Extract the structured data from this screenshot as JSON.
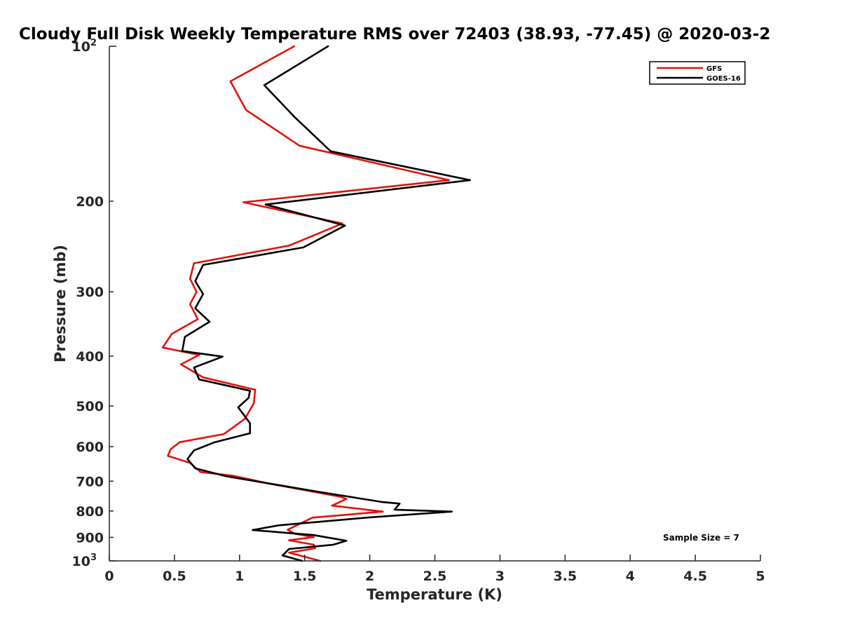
{
  "chart_data": {
    "type": "line",
    "title": "Cloudy Full Disk Weekly Temperature RMS over 72403 (38.93, -77.45) @ 2020-03-2",
    "xlabel": "Temperature (K)",
    "ylabel": "Pressure (mb)",
    "xlim": [
      0,
      5
    ],
    "ylim": [
      100,
      1000
    ],
    "y_scale": "log",
    "y_reversed": true,
    "x_ticks": [
      0,
      0.5,
      1,
      1.5,
      2,
      2.5,
      3,
      3.5,
      4,
      4.5,
      5
    ],
    "x_tick_labels": [
      "0",
      "0.5",
      "1",
      "1.5",
      "2",
      "2.5",
      "3",
      "3.5",
      "4",
      "4.5",
      "5"
    ],
    "y_ticks": [
      100,
      200,
      300,
      400,
      500,
      600,
      700,
      800,
      900,
      1000
    ],
    "y_tick_labels": [
      {
        "base": "10",
        "sup": "2"
      },
      {
        "base": "200",
        "sup": ""
      },
      {
        "base": "300",
        "sup": ""
      },
      {
        "base": "400",
        "sup": ""
      },
      {
        "base": "500",
        "sup": ""
      },
      {
        "base": "600",
        "sup": ""
      },
      {
        "base": "700",
        "sup": ""
      },
      {
        "base": "800",
        "sup": ""
      },
      {
        "base": "900",
        "sup": ""
      },
      {
        "base": "10",
        "sup": "3"
      }
    ],
    "grid": false,
    "legend_position": "top-right",
    "annotation": "Sample Size = 7",
    "series": [
      {
        "name": "GFS",
        "color": "#e3120b",
        "points": [
          [
            1.42,
            100
          ],
          [
            0.93,
            117
          ],
          [
            1.05,
            133
          ],
          [
            1.46,
            156
          ],
          [
            2.61,
            182
          ],
          [
            1.03,
            201
          ],
          [
            1.79,
            221
          ],
          [
            1.38,
            244
          ],
          [
            0.65,
            264
          ],
          [
            0.62,
            283
          ],
          [
            0.67,
            300
          ],
          [
            0.62,
            317
          ],
          [
            0.68,
            339
          ],
          [
            0.48,
            362
          ],
          [
            0.41,
            385
          ],
          [
            0.69,
            398
          ],
          [
            0.55,
            415
          ],
          [
            0.72,
            440
          ],
          [
            1.12,
            465
          ],
          [
            1.11,
            494
          ],
          [
            1.04,
            530
          ],
          [
            0.88,
            567
          ],
          [
            0.54,
            588
          ],
          [
            0.47,
            607
          ],
          [
            0.45,
            625
          ],
          [
            0.62,
            645
          ],
          [
            0.7,
            672
          ],
          [
            0.95,
            683
          ],
          [
            1.22,
            707
          ],
          [
            1.77,
            750
          ],
          [
            1.82,
            758
          ],
          [
            1.71,
            781
          ],
          [
            2.1,
            802
          ],
          [
            1.56,
            824
          ],
          [
            1.37,
            870
          ],
          [
            1.42,
            885
          ],
          [
            1.57,
            899
          ],
          [
            1.38,
            912
          ],
          [
            1.57,
            930
          ],
          [
            1.58,
            945
          ],
          [
            1.38,
            964
          ],
          [
            1.62,
            1000
          ]
        ]
      },
      {
        "name": "GOES-16",
        "color": "#000000",
        "points": [
          [
            1.68,
            100
          ],
          [
            1.19,
            119
          ],
          [
            1.42,
            137
          ],
          [
            1.7,
            160
          ],
          [
            2.77,
            182
          ],
          [
            1.2,
            203
          ],
          [
            1.81,
            223
          ],
          [
            1.49,
            246
          ],
          [
            0.72,
            266
          ],
          [
            0.66,
            286
          ],
          [
            0.72,
            303
          ],
          [
            0.66,
            323
          ],
          [
            0.77,
            343
          ],
          [
            0.58,
            367
          ],
          [
            0.56,
            391
          ],
          [
            0.87,
            401
          ],
          [
            0.65,
            421
          ],
          [
            0.69,
            444
          ],
          [
            1.08,
            467
          ],
          [
            1.07,
            482
          ],
          [
            0.99,
            503
          ],
          [
            1.08,
            540
          ],
          [
            1.08,
            565
          ],
          [
            0.81,
            588
          ],
          [
            0.65,
            610
          ],
          [
            0.6,
            634
          ],
          [
            0.66,
            661
          ],
          [
            0.9,
            685
          ],
          [
            1.62,
            735
          ],
          [
            2.09,
            768
          ],
          [
            2.23,
            774
          ],
          [
            2.19,
            795
          ],
          [
            2.63,
            802
          ],
          [
            2.0,
            823
          ],
          [
            1.3,
            853
          ],
          [
            1.1,
            871
          ],
          [
            1.57,
            891
          ],
          [
            1.82,
            914
          ],
          [
            1.72,
            930
          ],
          [
            1.38,
            948
          ],
          [
            1.33,
            976
          ],
          [
            1.48,
            1000
          ]
        ]
      }
    ]
  }
}
